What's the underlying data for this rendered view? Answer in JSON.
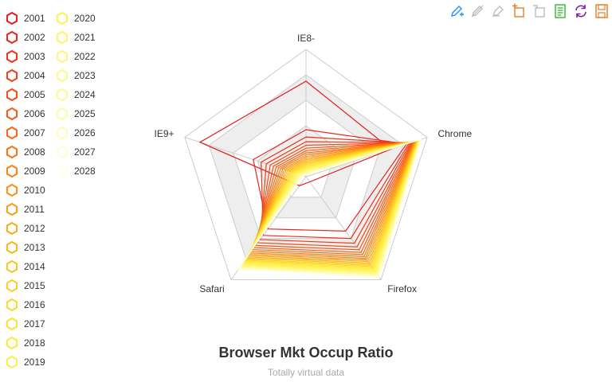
{
  "chart_data": {
    "type": "radar",
    "title": "Browser Mkt Occup Ratio",
    "subtitle": "Totally virtual data",
    "indicators": [
      {
        "name": "IE8-",
        "max": 400
      },
      {
        "name": "Chrome",
        "max": 400
      },
      {
        "name": "Firefox",
        "max": 400
      },
      {
        "name": "Safari",
        "max": 400
      },
      {
        "name": "IE9+",
        "max": 400
      }
    ],
    "years": [
      2001,
      2002,
      2003,
      2004,
      2005,
      2006,
      2007,
      2008,
      2009,
      2010,
      2011,
      2012,
      2013,
      2014,
      2015,
      2016,
      2017,
      2018,
      2019,
      2020,
      2021,
      2022,
      2023,
      2024,
      2025,
      2026,
      2027,
      2028
    ],
    "series_colors": [
      "#e41a1c",
      "#e8251b",
      "#eb3119",
      "#ee3e18",
      "#f14b16",
      "#f35815",
      "#f56514",
      "#f77213",
      "#f88013",
      "#f98e13",
      "#fa9c14",
      "#fbaa16",
      "#fbb718",
      "#fcc31c",
      "#fcce21",
      "#fdd828",
      "#fde130",
      "#fde93a",
      "#feee46",
      "#fef253",
      "#fef562",
      "#fef772",
      "#fef983",
      "#fefa95",
      "#fefba8",
      "#fefcbb",
      "#fefdd0",
      "#fffee6"
    ],
    "start": [
      300,
      280,
      20,
      35,
      350
    ],
    "end": [
      5,
      380,
      390,
      360,
      10
    ],
    "curve_exponent": 5,
    "split_number": 5,
    "split_area_colors": [
      "#ffffff",
      "#eeeeee"
    ],
    "grid_line_color": "#cccccc"
  },
  "legend": {
    "selected_mode": "multiple"
  },
  "toolbox": {
    "tools": [
      {
        "name": "mark-icon",
        "color": "#1e90ff"
      },
      {
        "name": "mark-undo-icon",
        "color": "#bbbbbb"
      },
      {
        "name": "mark-clear-icon",
        "color": "#bbbbbb"
      },
      {
        "name": "data-zoom-icon",
        "color": "#e87c25"
      },
      {
        "name": "data-zoom-reset-icon",
        "color": "#bbbbbb"
      },
      {
        "name": "data-view-icon",
        "color": "#2eb82e"
      },
      {
        "name": "restore-icon",
        "color": "#7b1fa2"
      },
      {
        "name": "save-image-icon",
        "color": "#e87c25"
      }
    ]
  }
}
